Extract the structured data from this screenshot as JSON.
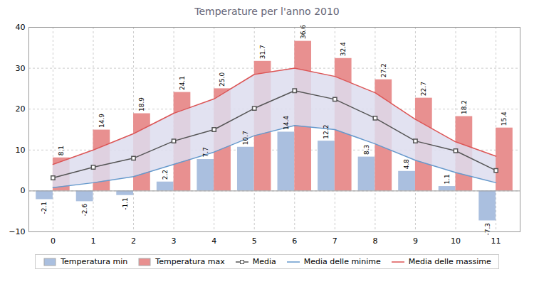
{
  "chart_data": {
    "type": "bar",
    "title": "Temperature per l'anno 2010",
    "x": [
      0,
      1,
      2,
      3,
      4,
      5,
      6,
      7,
      8,
      9,
      10,
      11
    ],
    "xlim": [
      -0.6,
      11.6
    ],
    "xticks": [
      0,
      1,
      2,
      3,
      4,
      5,
      6,
      7,
      8,
      9,
      10,
      11
    ],
    "ylim": [
      -10,
      40
    ],
    "yticks": [
      -10,
      0,
      10,
      20,
      30,
      40
    ],
    "grid": true,
    "legend": "bottom",
    "series": [
      {
        "name": "Temperatura min",
        "type": "bar",
        "color": "#aabfdf",
        "data_labels": true,
        "values": [
          -2.1,
          -2.6,
          -1.1,
          2.2,
          7.7,
          10.7,
          14.4,
          12.2,
          8.3,
          4.8,
          1.1,
          -7.3
        ]
      },
      {
        "name": "Temperatura max",
        "type": "bar",
        "color": "#e89090",
        "data_labels": true,
        "values": [
          8.1,
          14.9,
          18.9,
          24.1,
          25.0,
          31.7,
          36.6,
          32.4,
          27.2,
          22.7,
          18.2,
          15.4
        ],
        "value_labels": [
          "8.1",
          "14.9",
          "18.9",
          "24.1",
          "25.0",
          "31.7",
          "36.6",
          "32.4",
          "27.2",
          "22.7",
          "18.2",
          "15.4"
        ]
      },
      {
        "name": "Media",
        "type": "line",
        "color": "#555555",
        "marker": "square",
        "values": [
          3.2,
          5.8,
          8.0,
          12.2,
          15.0,
          20.2,
          24.5,
          22.4,
          17.8,
          12.2,
          9.8,
          5.0
        ]
      },
      {
        "name": "Media delle minime",
        "type": "line",
        "color": "#6699cc",
        "values": [
          0.8,
          2.0,
          3.5,
          6.5,
          9.5,
          13.5,
          16.0,
          15.0,
          11.5,
          7.5,
          4.5,
          2.0
        ]
      },
      {
        "name": "Media delle massime",
        "type": "line",
        "color": "#dd5555",
        "values": [
          6.5,
          10.0,
          14.0,
          19.0,
          22.5,
          28.5,
          30.0,
          28.0,
          24.0,
          17.5,
          12.0,
          8.5
        ]
      }
    ],
    "band": {
      "lower": "Media delle minime",
      "upper": "Media delle massime",
      "color": "#ddddee"
    }
  }
}
